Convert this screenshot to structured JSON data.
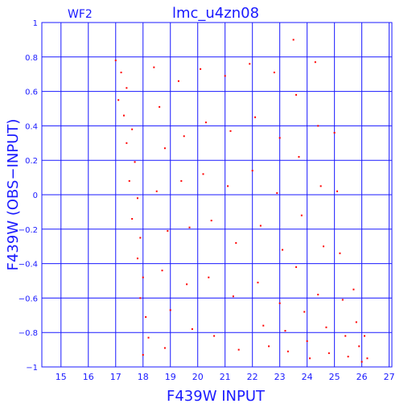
{
  "chart_data": {
    "type": "scatter",
    "title": "lmc_u4zn08",
    "panel_label": "WF2",
    "xlabel": "F439W INPUT",
    "ylabel": "F439W (OBS−INPUT)",
    "xlim": [
      14.3,
      27.1
    ],
    "ylim": [
      -1.0,
      1.0
    ],
    "x_ticks": [
      15,
      16,
      17,
      18,
      19,
      20,
      21,
      22,
      23,
      24,
      25,
      26,
      27
    ],
    "y_ticks": [
      -1,
      -0.8,
      -0.6,
      -0.4,
      -0.2,
      0,
      0.2,
      0.4,
      0.6,
      0.8,
      1
    ],
    "x_tick_labels": [
      "15",
      "16",
      "17",
      "18",
      "19",
      "20",
      "21",
      "22",
      "23",
      "24",
      "25",
      "26",
      "27"
    ],
    "y_tick_labels": [
      "−1",
      "−0.8",
      "−0.6",
      "−0.4",
      "−0.2",
      "0",
      "0.2",
      "0.4",
      "0.6",
      "0.8",
      "1"
    ],
    "grid": true,
    "colors": {
      "frame": "#1a1aff",
      "points": "#ff0000",
      "highlight_points": "#ffee00"
    },
    "series": [
      {
        "color": "#ff0000",
        "points": [
          [
            17.0,
            0.78
          ],
          [
            17.2,
            0.71
          ],
          [
            17.4,
            0.62
          ],
          [
            17.1,
            0.55
          ],
          [
            17.3,
            0.46
          ],
          [
            17.6,
            0.38
          ],
          [
            17.4,
            0.3
          ],
          [
            17.7,
            0.19
          ],
          [
            17.5,
            0.08
          ],
          [
            17.8,
            -0.02
          ],
          [
            17.6,
            -0.14
          ],
          [
            17.9,
            -0.25
          ],
          [
            17.8,
            -0.37
          ],
          [
            18.0,
            -0.48
          ],
          [
            17.9,
            -0.6
          ],
          [
            18.1,
            -0.71
          ],
          [
            18.2,
            -0.83
          ],
          [
            18.0,
            -0.93
          ],
          [
            18.4,
            0.74
          ],
          [
            18.6,
            0.51
          ],
          [
            18.8,
            0.27
          ],
          [
            18.5,
            0.02
          ],
          [
            18.9,
            -0.21
          ],
          [
            18.7,
            -0.44
          ],
          [
            19.0,
            -0.67
          ],
          [
            18.8,
            -0.89
          ],
          [
            19.3,
            0.66
          ],
          [
            19.5,
            0.34
          ],
          [
            19.4,
            0.08
          ],
          [
            19.7,
            -0.19
          ],
          [
            19.6,
            -0.52
          ],
          [
            19.8,
            -0.78
          ],
          [
            20.1,
            0.73
          ],
          [
            20.3,
            0.42
          ],
          [
            20.2,
            0.12
          ],
          [
            20.5,
            -0.15
          ],
          [
            20.4,
            -0.48
          ],
          [
            20.6,
            -0.82
          ],
          [
            21.0,
            0.69
          ],
          [
            21.2,
            0.37
          ],
          [
            21.1,
            0.05
          ],
          [
            21.4,
            -0.28
          ],
          [
            21.3,
            -0.59
          ],
          [
            21.5,
            -0.9
          ],
          [
            21.9,
            0.76
          ],
          [
            22.1,
            0.45
          ],
          [
            22.0,
            0.14
          ],
          [
            22.3,
            -0.18
          ],
          [
            22.2,
            -0.51
          ],
          [
            22.4,
            -0.76
          ],
          [
            22.6,
            -0.88
          ],
          [
            22.8,
            0.71
          ],
          [
            23.0,
            0.33
          ],
          [
            22.9,
            0.01
          ],
          [
            23.1,
            -0.32
          ],
          [
            23.0,
            -0.63
          ],
          [
            23.2,
            -0.79
          ],
          [
            23.3,
            -0.91
          ],
          [
            23.5,
            0.9
          ],
          [
            23.6,
            0.58
          ],
          [
            23.7,
            0.22
          ],
          [
            23.8,
            -0.12
          ],
          [
            23.6,
            -0.42
          ],
          [
            23.9,
            -0.68
          ],
          [
            24.0,
            -0.85
          ],
          [
            24.1,
            -0.95
          ],
          [
            24.3,
            0.77
          ],
          [
            24.4,
            0.4
          ],
          [
            24.5,
            0.05
          ],
          [
            24.6,
            -0.3
          ],
          [
            24.4,
            -0.58
          ],
          [
            24.7,
            -0.77
          ],
          [
            24.8,
            -0.92
          ],
          [
            25.0,
            0.36
          ],
          [
            25.1,
            0.02
          ],
          [
            25.2,
            -0.34
          ],
          [
            25.3,
            -0.61
          ],
          [
            25.4,
            -0.82
          ],
          [
            25.5,
            -0.94
          ],
          [
            25.7,
            -0.55
          ],
          [
            25.8,
            -0.74
          ],
          [
            25.9,
            -0.88
          ],
          [
            26.0,
            -0.97
          ],
          [
            26.1,
            -0.82
          ],
          [
            26.2,
            -0.95
          ]
        ]
      }
    ]
  }
}
